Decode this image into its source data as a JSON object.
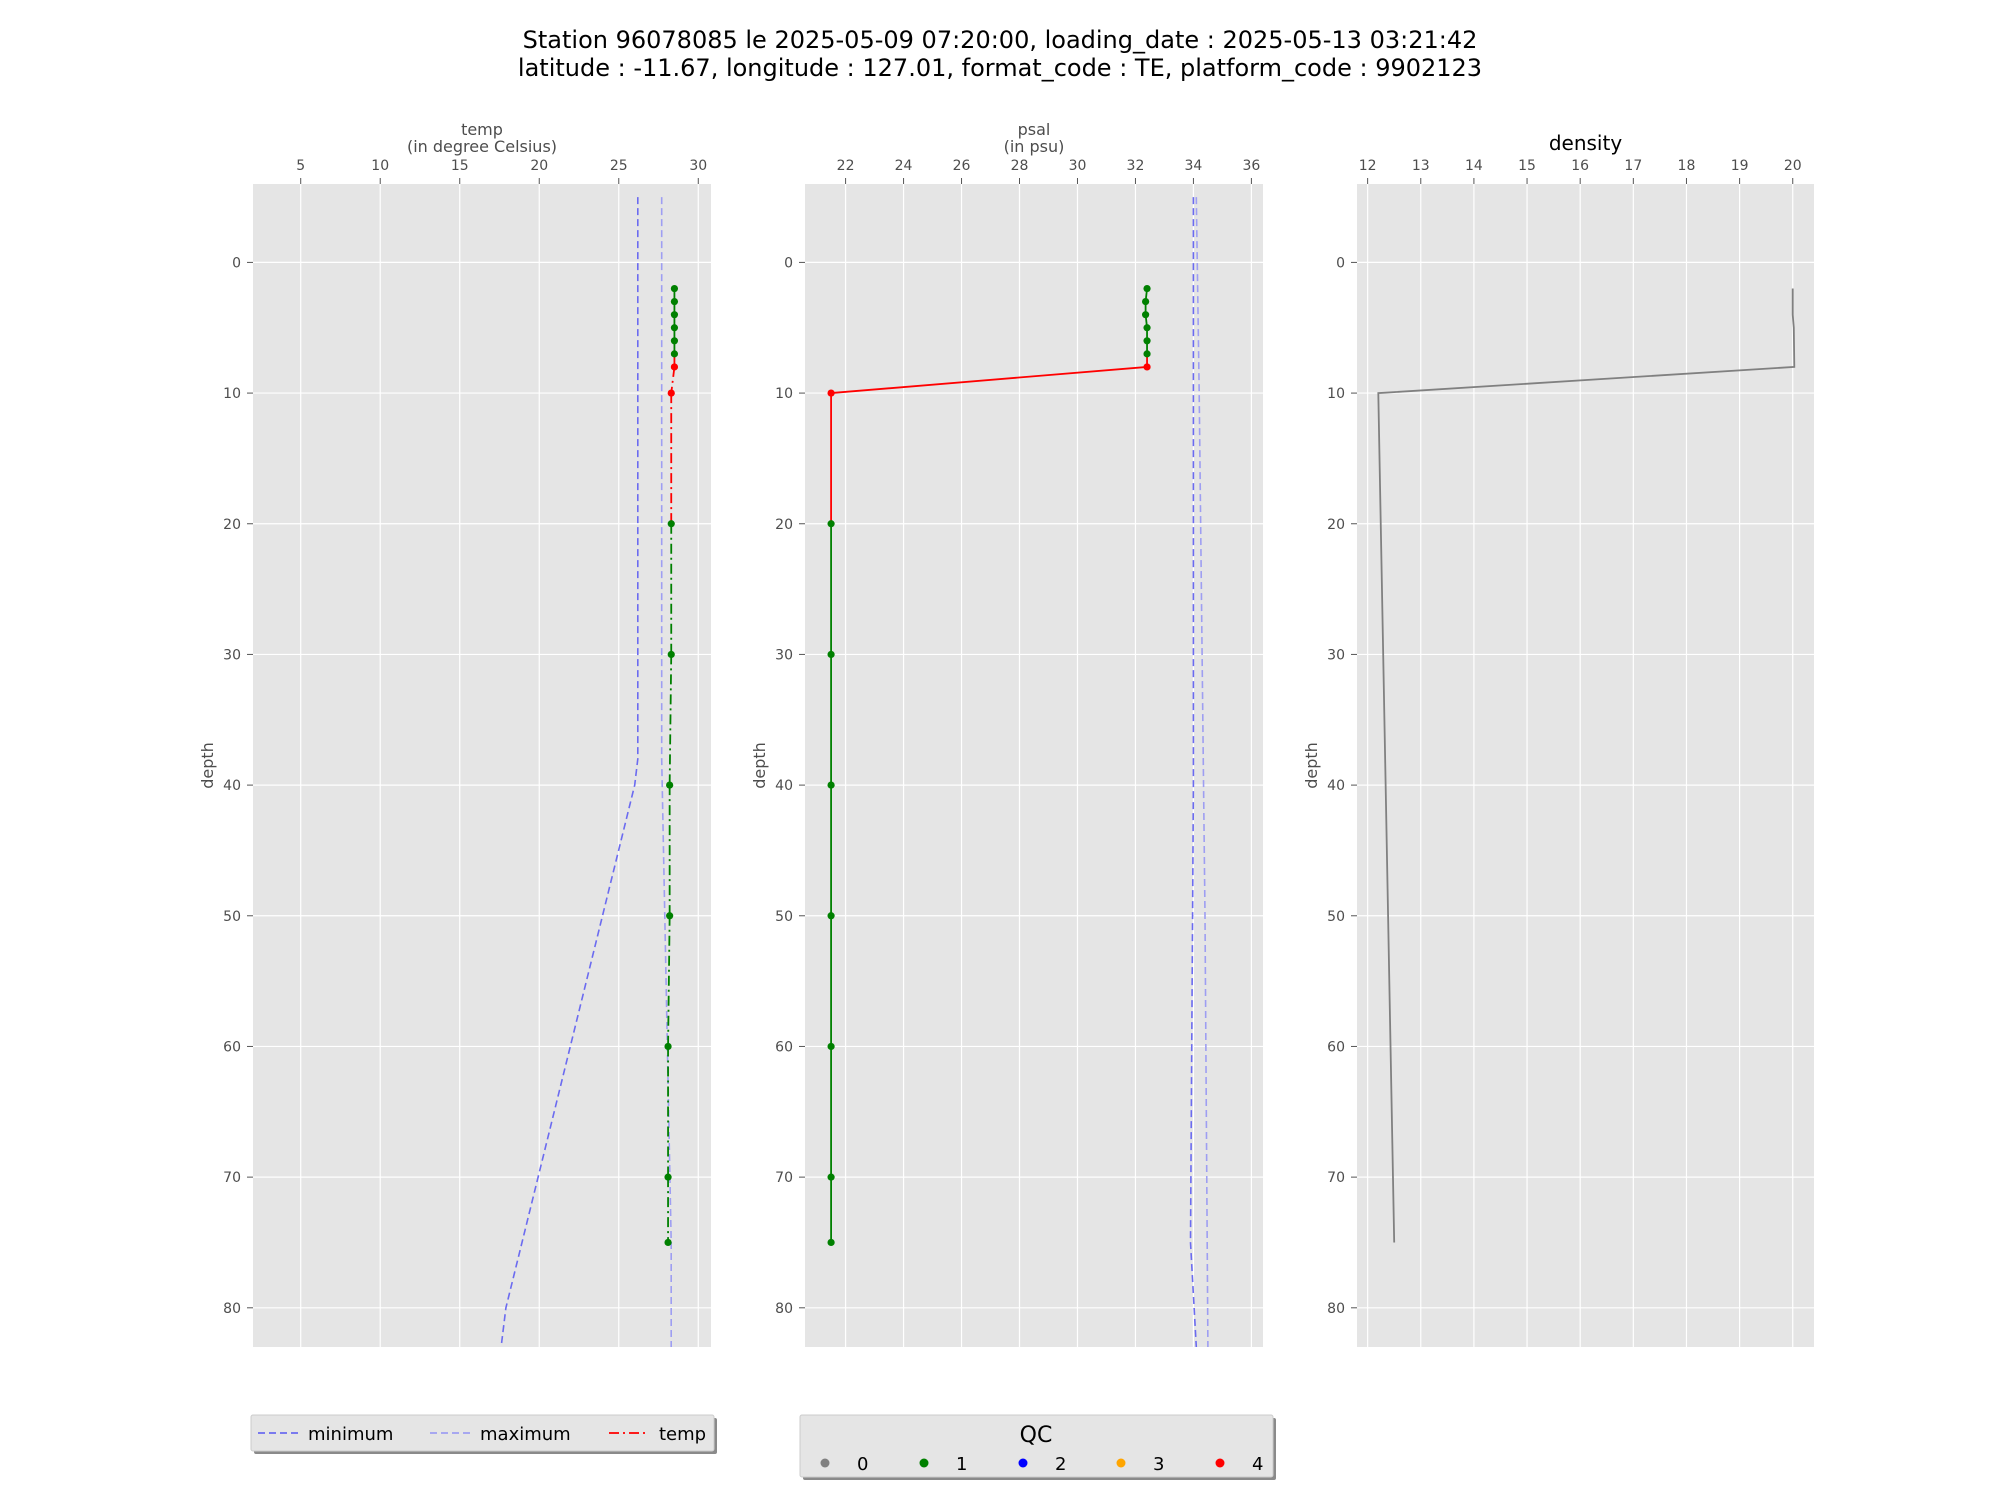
{
  "title": {
    "line1": "Station 96078085 le 2025-05-09 07:20:00, loading_date : 2025-05-13 03:21:42",
    "line2": "latitude : -11.67, longitude : 127.01, format_code : TE, platform_code : 9902123"
  },
  "colors": {
    "panel_bg": "#e5e5e5",
    "grid": "#ffffff",
    "minimum": "#6b6bf0",
    "maximum": "#9e9ef2",
    "qc0": "#808080",
    "qc1": "#008000",
    "qc2": "#0000ff",
    "qc3": "#ffa500",
    "qc4": "#ff0000",
    "density_line": "#808080"
  },
  "chart_data": [
    {
      "type": "line",
      "name": "temp",
      "xlabel_line1": "temp",
      "xlabel_line2": "(in degree Celsius)",
      "ylabel": "depth",
      "xlim": [
        2,
        30.8
      ],
      "ylim": [
        83,
        -6
      ],
      "xticks": [
        5,
        10,
        15,
        20,
        25,
        30
      ],
      "yticks": [
        0,
        10,
        20,
        30,
        40,
        50,
        60,
        70,
        80
      ],
      "grid": true,
      "y_inverted": true,
      "x_axis_position": "top",
      "minimum": {
        "x": [
          26.2,
          26.2,
          26.0,
          17.9,
          17.6
        ],
        "y": [
          -5,
          38,
          40,
          80,
          83
        ]
      },
      "maximum": {
        "x": [
          27.7,
          27.7,
          28.3,
          28.3
        ],
        "y": [
          -5,
          38,
          75,
          83
        ]
      },
      "profile": {
        "depth": [
          2,
          3,
          4,
          5,
          6,
          7,
          8,
          10,
          20,
          30,
          40,
          50,
          60,
          70,
          75
        ],
        "values": [
          28.5,
          28.5,
          28.5,
          28.5,
          28.5,
          28.5,
          28.5,
          28.3,
          28.3,
          28.3,
          28.2,
          28.2,
          28.1,
          28.1,
          28.1
        ],
        "qc": [
          1,
          1,
          1,
          1,
          1,
          1,
          4,
          4,
          1,
          1,
          1,
          1,
          1,
          1,
          1
        ]
      }
    },
    {
      "type": "line",
      "name": "psal",
      "xlabel_line1": "psal",
      "xlabel_line2": "(in psu)",
      "ylabel": "depth",
      "xlim": [
        20.6,
        36.4
      ],
      "ylim": [
        83,
        -6
      ],
      "xticks": [
        22,
        24,
        26,
        28,
        30,
        32,
        34,
        36
      ],
      "yticks": [
        0,
        10,
        20,
        30,
        40,
        50,
        60,
        70,
        80
      ],
      "grid": true,
      "y_inverted": true,
      "x_axis_position": "top",
      "minimum": {
        "x": [
          34.0,
          34.0,
          33.9,
          34.1
        ],
        "y": [
          -5,
          40,
          75,
          83
        ]
      },
      "maximum": {
        "x": [
          34.1,
          34.2,
          34.4,
          34.5
        ],
        "y": [
          -5,
          10,
          50,
          83
        ]
      },
      "profile": {
        "depth": [
          2,
          3,
          4,
          5,
          6,
          7,
          8,
          10,
          20,
          30,
          40,
          50,
          60,
          70,
          75
        ],
        "values": [
          32.4,
          32.35,
          32.35,
          32.4,
          32.4,
          32.4,
          32.4,
          21.5,
          21.5,
          21.5,
          21.5,
          21.5,
          21.5,
          21.5,
          21.5
        ],
        "qc": [
          1,
          1,
          1,
          1,
          1,
          1,
          4,
          4,
          1,
          1,
          1,
          1,
          1,
          1,
          1
        ]
      }
    },
    {
      "type": "line",
      "name": "density",
      "title": "density",
      "ylabel": "depth",
      "xlim": [
        11.8,
        20.4
      ],
      "ylim": [
        83,
        -6
      ],
      "xticks": [
        12,
        13,
        14,
        15,
        16,
        17,
        18,
        19,
        20
      ],
      "yticks": [
        0,
        10,
        20,
        30,
        40,
        50,
        60,
        70,
        80
      ],
      "grid": true,
      "y_inverted": true,
      "x_axis_position": "top",
      "profile": {
        "depth": [
          2,
          4,
          5,
          8,
          10,
          75
        ],
        "values": [
          20.0,
          20.0,
          20.02,
          20.03,
          12.2,
          12.5
        ]
      }
    }
  ],
  "legend_left": {
    "placement": "bottom-left",
    "items": [
      {
        "label": "minimum",
        "style": "dashed",
        "color_key": "minimum"
      },
      {
        "label": "maximum",
        "style": "dashed",
        "color_key": "maximum"
      },
      {
        "label": "temp",
        "style": "dashdot",
        "color_key": "qc4"
      }
    ]
  },
  "legend_qc": {
    "placement": "bottom-center",
    "title": "QC",
    "items": [
      {
        "label": "0",
        "color_key": "qc0"
      },
      {
        "label": "1",
        "color_key": "qc1"
      },
      {
        "label": "2",
        "color_key": "qc2"
      },
      {
        "label": "3",
        "color_key": "qc3"
      },
      {
        "label": "4",
        "color_key": "qc4"
      }
    ]
  }
}
